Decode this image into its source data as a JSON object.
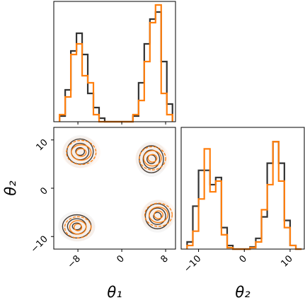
{
  "chart_data": [
    {
      "type": "histogram",
      "xlim": [
        -12.4,
        9.8
      ],
      "ylim": [
        0,
        170
      ],
      "xticks": [
        {
          "value": -8,
          "label": "−8"
        },
        0,
        8
      ],
      "bins": [
        -11.35,
        -10.32,
        -9.29,
        -8.26,
        -7.23,
        -6.2,
        -5.17,
        -4.14,
        -3.11,
        -2.08,
        -1.05,
        -0.02,
        1.01,
        2.04,
        3.07,
        4.1,
        5.13,
        6.16,
        7.19,
        8.22,
        9.25
      ],
      "series": [
        {
          "color": "#333333",
          "values": [
            8,
            45,
            100,
            125,
            95,
            40,
            20,
            5,
            0,
            0,
            0,
            0,
            0,
            8,
            55,
            110,
            145,
            155,
            85,
            25
          ]
        },
        {
          "color": "#ff7f0e",
          "values": [
            10,
            35,
            95,
            110,
            65,
            55,
            10,
            0,
            0,
            0,
            0,
            0,
            0,
            10,
            30,
            85,
            140,
            165,
            40,
            10
          ]
        }
      ]
    },
    {
      "type": "contour",
      "xlabel": "θ₁",
      "ylabel": "θ₂",
      "xlim": [
        -12.4,
        9.8
      ],
      "ylim": [
        -12.6,
        12.6
      ],
      "xticks": [
        {
          "value": -8,
          "label": "−8"
        },
        0,
        8
      ],
      "yticks": [
        {
          "value": -10,
          "label": "−10"
        },
        0,
        10
      ],
      "series": [
        {
          "color": "#333333",
          "contours": [
            {
              "cx": -7.6,
              "cy": 7.6,
              "rx": [
                2.4,
                1.6,
                0.8
              ],
              "ry": [
                2.6,
                1.7,
                0.8
              ]
            },
            {
              "cx": 5.4,
              "cy": 6.0,
              "rx": [
                2.2,
                1.5,
                0.8
              ],
              "ry": [
                2.8,
                1.9,
                0.9
              ]
            },
            {
              "cx": -8.2,
              "cy": -7.9,
              "rx": [
                2.6,
                1.7,
                0.8
              ],
              "ry": [
                2.4,
                1.6,
                0.7
              ]
            },
            {
              "cx": 6.5,
              "cy": -5.8,
              "rx": [
                2.2,
                1.5,
                0.7
              ],
              "ry": [
                2.6,
                1.7,
                0.8
              ]
            }
          ]
        },
        {
          "color": "#ff7f0e",
          "contours": [
            {
              "cx": -7.4,
              "cy": 7.4,
              "rx": [
                2.7,
                1.8,
                0.9
              ],
              "ry": [
                2.5,
                1.6,
                0.8
              ]
            },
            {
              "cx": 5.6,
              "cy": 6.2,
              "rx": [
                2.4,
                1.6,
                0.8
              ],
              "ry": [
                2.4,
                1.6,
                0.8
              ]
            },
            {
              "cx": -8.0,
              "cy": -8.1,
              "rx": [
                2.4,
                1.5,
                0.7
              ],
              "ry": [
                2.2,
                1.4,
                0.7
              ]
            },
            {
              "cx": 6.7,
              "cy": -5.5,
              "rx": [
                2.5,
                1.7,
                0.8
              ],
              "ry": [
                2.4,
                1.6,
                0.8
              ]
            }
          ]
        }
      ]
    },
    {
      "type": "histogram",
      "xlabel": "θ₂",
      "xlim": [
        -13.8,
        13.1
      ],
      "ylim": [
        0,
        170
      ],
      "xticks": [
        {
          "value": -10,
          "label": "−10"
        },
        0,
        10
      ],
      "bins": [
        -12.5,
        -11.25,
        -10,
        -8.75,
        -7.5,
        -6.25,
        -5,
        -3.75,
        -2.5,
        -1.25,
        0,
        1.25,
        2.5,
        3.75,
        5,
        6.25,
        7.5,
        8.75,
        10,
        11.25,
        12.5
      ],
      "series": [
        {
          "color": "#333333",
          "values": [
            10,
            60,
            110,
            110,
            90,
            100,
            30,
            5,
            0,
            0,
            0,
            3,
            15,
            45,
            120,
            150,
            120,
            40,
            5,
            0
          ]
        },
        {
          "color": "#ff7f0e",
          "values": [
            5,
            25,
            70,
            140,
            80,
            95,
            20,
            2,
            0,
            0,
            0,
            2,
            10,
            55,
            90,
            150,
            95,
            30,
            5,
            0
          ]
        }
      ]
    }
  ]
}
